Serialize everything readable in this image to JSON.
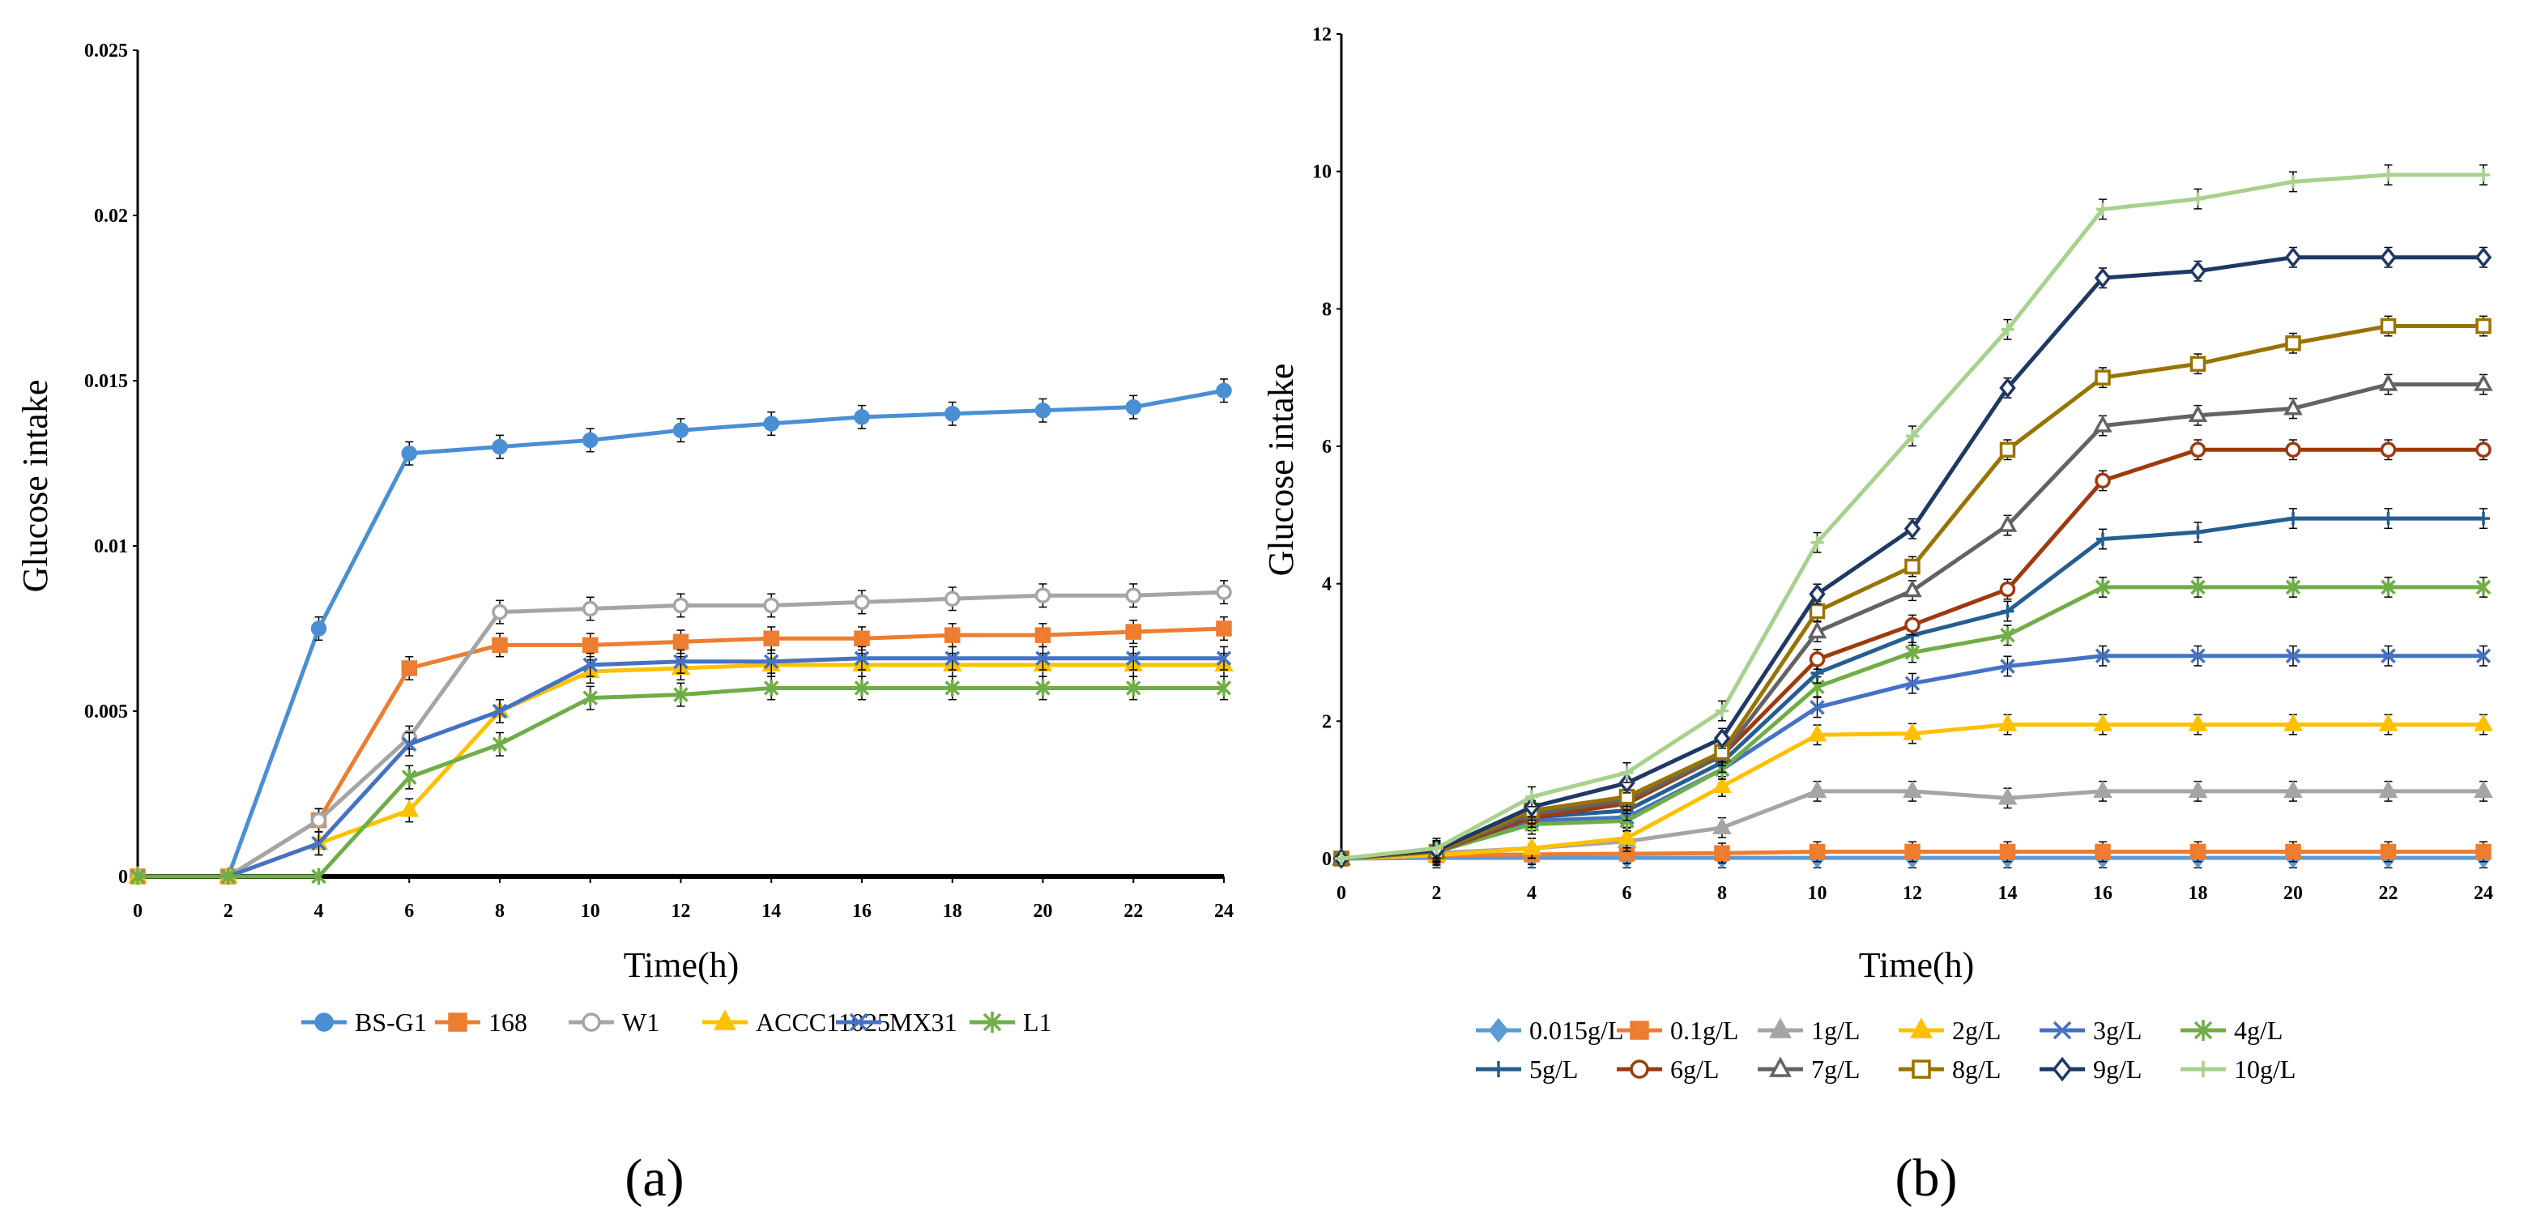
{
  "chart_data": [
    {
      "type": "line",
      "panel_label": "(a)",
      "xlabel": "Time(h)",
      "ylabel": "Glucose intake",
      "xlim": [
        0,
        24
      ],
      "ylim": [
        0,
        0.025
      ],
      "x": [
        0,
        2,
        4,
        6,
        8,
        10,
        12,
        14,
        16,
        18,
        20,
        22,
        24
      ],
      "xticks": [
        "0",
        "2",
        "4",
        "6",
        "8",
        "10",
        "12",
        "14",
        "16",
        "18",
        "20",
        "22",
        "24"
      ],
      "yticks": [
        "0",
        "0.005",
        "0.01",
        "0.015",
        "0.02",
        "0.025"
      ],
      "ytick_values": [
        0,
        0.005,
        0.01,
        0.015,
        0.02,
        0.025
      ],
      "legend_position": "bottom",
      "series": [
        {
          "name": "BS-G1",
          "color": "#4a8fd4",
          "marker": "circle",
          "values": [
            0,
            0,
            0.0075,
            0.0128,
            0.013,
            0.0132,
            0.0135,
            0.0137,
            0.0139,
            0.014,
            0.0141,
            0.0142,
            0.0147
          ]
        },
        {
          "name": "168",
          "color": "#ed7d31",
          "marker": "square",
          "values": [
            0,
            0,
            0.0017,
            0.0063,
            0.007,
            0.007,
            0.0071,
            0.0072,
            0.0072,
            0.0073,
            0.0073,
            0.0074,
            0.0075
          ]
        },
        {
          "name": "W1",
          "color": "#a5a5a5",
          "marker": "circle",
          "values": [
            0,
            0,
            0.0017,
            0.0042,
            0.008,
            0.0081,
            0.0082,
            0.0082,
            0.0083,
            0.0084,
            0.0085,
            0.0085,
            0.0086
          ]
        },
        {
          "name": "ACCC11025",
          "color": "#ffc000",
          "marker": "triangle",
          "values": [
            0,
            0,
            0.001,
            0.002,
            0.005,
            0.0062,
            0.0063,
            0.0064,
            0.0064,
            0.0064,
            0.0064,
            0.0064,
            0.0064
          ]
        },
        {
          "name": "MX31",
          "color": "#4472c4",
          "marker": "x",
          "values": [
            0,
            0,
            0.001,
            0.004,
            0.005,
            0.0064,
            0.0065,
            0.0065,
            0.0066,
            0.0066,
            0.0066,
            0.0066,
            0.0066
          ]
        },
        {
          "name": "L1",
          "color": "#70ad47",
          "marker": "star",
          "values": [
            0,
            0,
            0,
            0.003,
            0.004,
            0.0054,
            0.0055,
            0.0057,
            0.0057,
            0.0057,
            0.0057,
            0.0057,
            0.0057
          ]
        }
      ]
    },
    {
      "type": "line",
      "panel_label": "(b)",
      "xlabel": "Time(h)",
      "ylabel": "Glucose intake",
      "xlim": [
        0,
        24
      ],
      "ylim": [
        0,
        12
      ],
      "x": [
        0,
        2,
        4,
        6,
        8,
        10,
        12,
        14,
        16,
        18,
        20,
        22,
        24
      ],
      "xticks": [
        "0",
        "2",
        "4",
        "6",
        "8",
        "10",
        "12",
        "14",
        "16",
        "18",
        "20",
        "22",
        "24"
      ],
      "yticks": [
        "0",
        "2",
        "4",
        "6",
        "8",
        "10",
        "12"
      ],
      "ytick_values": [
        0,
        2,
        4,
        6,
        8,
        10,
        12
      ],
      "legend_position": "bottom",
      "series": [
        {
          "name": "0.015g/L",
          "color": "#5b9bd5",
          "marker": "diamond",
          "values": [
            0,
            0.01,
            0.01,
            0.01,
            0.01,
            0.01,
            0.01,
            0.01,
            0.01,
            0.01,
            0.01,
            0.01,
            0.01
          ]
        },
        {
          "name": "0.1g/L",
          "color": "#ed7d31",
          "marker": "square",
          "values": [
            0,
            0.05,
            0.06,
            0.07,
            0.08,
            0.1,
            0.1,
            0.1,
            0.1,
            0.1,
            0.1,
            0.1,
            0.1
          ]
        },
        {
          "name": "1g/L",
          "color": "#a5a5a5",
          "marker": "triangle",
          "values": [
            0,
            0.08,
            0.15,
            0.25,
            0.45,
            0.98,
            0.98,
            0.88,
            0.98,
            0.98,
            0.98,
            0.98,
            0.98
          ]
        },
        {
          "name": "2g/L",
          "color": "#ffc000",
          "marker": "triangle",
          "values": [
            0,
            0.05,
            0.15,
            0.3,
            1.05,
            1.8,
            1.82,
            1.95,
            1.95,
            1.95,
            1.95,
            1.95,
            1.95
          ]
        },
        {
          "name": "3g/L",
          "color": "#4472c4",
          "marker": "x",
          "values": [
            0,
            0.1,
            0.55,
            0.6,
            1.3,
            2.2,
            2.55,
            2.8,
            2.95,
            2.95,
            2.95,
            2.95,
            2.95
          ]
        },
        {
          "name": "4g/L",
          "color": "#70ad47",
          "marker": "star",
          "values": [
            0,
            0.1,
            0.5,
            0.55,
            1.3,
            2.5,
            3.0,
            3.25,
            3.95,
            3.95,
            3.95,
            3.95,
            3.95
          ]
        },
        {
          "name": "5g/L",
          "color": "#255e91",
          "marker": "plus",
          "values": [
            0,
            0.1,
            0.6,
            0.7,
            1.4,
            2.7,
            3.25,
            3.6,
            4.65,
            4.75,
            4.95,
            4.95,
            4.95
          ]
        },
        {
          "name": "6g/L",
          "color": "#9e3a0e",
          "marker": "circle",
          "values": [
            0,
            0.1,
            0.6,
            0.8,
            1.5,
            2.9,
            3.4,
            3.92,
            5.5,
            5.95,
            5.95,
            5.95,
            5.95
          ]
        },
        {
          "name": "7g/L",
          "color": "#636363",
          "marker": "triangle",
          "values": [
            0,
            0.1,
            0.65,
            0.85,
            1.5,
            3.3,
            3.9,
            4.85,
            6.3,
            6.45,
            6.55,
            6.9,
            6.9
          ]
        },
        {
          "name": "8g/L",
          "color": "#997300",
          "marker": "square",
          "values": [
            0,
            0.1,
            0.7,
            0.9,
            1.55,
            3.6,
            4.25,
            5.95,
            7.0,
            7.2,
            7.5,
            7.75,
            7.75
          ]
        },
        {
          "name": "9g/L",
          "color": "#1f3864",
          "marker": "diamond",
          "values": [
            0,
            0.12,
            0.75,
            1.1,
            1.75,
            3.85,
            4.8,
            6.85,
            8.45,
            8.55,
            8.75,
            8.75,
            8.75
          ]
        },
        {
          "name": "10g/L",
          "color": "#a9d18e",
          "marker": "plus",
          "values": [
            0,
            0.15,
            0.9,
            1.25,
            2.15,
            4.6,
            6.15,
            7.7,
            9.45,
            9.6,
            9.85,
            9.95,
            9.95
          ]
        }
      ]
    }
  ]
}
